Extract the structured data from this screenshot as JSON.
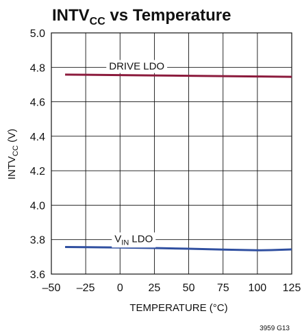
{
  "chart_data": {
    "type": "line",
    "title_main": "INTV",
    "title_sub": "CC",
    "title_rest": " vs Temperature",
    "xlabel": "TEMPERATURE (°C)",
    "ylabel_main": "INTV",
    "ylabel_sub": "CC",
    "ylabel_rest": " (V)",
    "xlim": [
      -50,
      125
    ],
    "ylim": [
      3.6,
      5.0
    ],
    "xticks": [
      -50,
      -25,
      0,
      25,
      50,
      75,
      100,
      125
    ],
    "yticks": [
      3.6,
      3.8,
      4.0,
      4.2,
      4.4,
      4.6,
      4.8,
      5.0
    ],
    "xtick_labels": [
      "–50",
      "–25",
      "0",
      "25",
      "50",
      "75",
      "100",
      "125"
    ],
    "ytick_labels": [
      "3.6",
      "3.8",
      "4.0",
      "4.2",
      "4.4",
      "4.6",
      "4.8",
      "5.0"
    ],
    "grid": true,
    "figure_code": "3959 G13",
    "series": [
      {
        "name": "DRIVE LDO",
        "color": "#8b1a3c",
        "x": [
          -40,
          -25,
          0,
          25,
          50,
          75,
          100,
          125
        ],
        "y": [
          4.758,
          4.757,
          4.755,
          4.753,
          4.751,
          4.749,
          4.747,
          4.745
        ]
      },
      {
        "name_main": "V",
        "name_sub": "IN",
        "name_rest": " LDO",
        "color": "#2f4fa0",
        "x": [
          -40,
          -25,
          0,
          25,
          50,
          75,
          100,
          110,
          125
        ],
        "y": [
          3.757,
          3.756,
          3.754,
          3.751,
          3.747,
          3.742,
          3.738,
          3.739,
          3.743
        ]
      }
    ]
  }
}
